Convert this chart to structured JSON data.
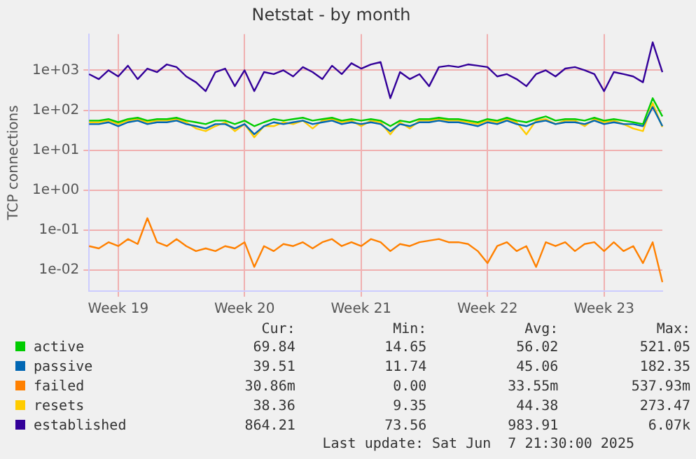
{
  "chart_data": {
    "type": "line",
    "title": "Netstat - by month",
    "ylabel": "TCP connections",
    "categories": [
      null,
      null,
      null,
      "Week 19",
      null,
      null,
      null,
      null,
      null,
      null,
      null,
      null,
      null,
      null,
      null,
      null,
      "Week 20",
      null,
      null,
      null,
      null,
      null,
      null,
      null,
      null,
      null,
      null,
      null,
      "Week 21",
      null,
      null,
      null,
      null,
      null,
      null,
      null,
      null,
      null,
      null,
      null,
      null,
      "Week 22",
      null,
      null,
      null,
      null,
      null,
      null,
      null,
      null,
      null,
      null,
      null,
      "Week 23",
      null,
      null,
      null,
      null,
      null,
      null
    ],
    "series": [
      {
        "name": "active",
        "color": "#00cc00",
        "values": [
          55,
          55,
          60,
          50,
          60,
          65,
          55,
          60,
          60,
          65,
          55,
          50,
          45,
          55,
          55,
          45,
          55,
          40,
          50,
          60,
          55,
          60,
          65,
          55,
          60,
          65,
          55,
          60,
          55,
          60,
          55,
          40,
          55,
          50,
          60,
          60,
          65,
          60,
          60,
          55,
          50,
          60,
          55,
          65,
          55,
          50,
          60,
          70,
          55,
          60,
          60,
          55,
          65,
          55,
          60,
          55,
          50,
          45,
          200,
          70
        ]
      },
      {
        "name": "passive",
        "color": "#0066b3",
        "values": [
          45,
          45,
          50,
          40,
          50,
          55,
          45,
          50,
          50,
          55,
          45,
          40,
          35,
          45,
          45,
          35,
          45,
          25,
          40,
          50,
          45,
          50,
          55,
          45,
          50,
          55,
          45,
          50,
          45,
          50,
          45,
          30,
          45,
          40,
          50,
          50,
          55,
          50,
          50,
          45,
          40,
          50,
          45,
          55,
          45,
          40,
          50,
          55,
          45,
          50,
          50,
          45,
          55,
          45,
          50,
          45,
          45,
          40,
          120,
          40
        ]
      },
      {
        "name": "failed",
        "color": "#ff8000",
        "values": [
          0.04,
          0.035,
          0.05,
          0.04,
          0.06,
          0.045,
          0.2,
          0.05,
          0.04,
          0.06,
          0.04,
          0.03,
          0.035,
          0.03,
          0.04,
          0.035,
          0.05,
          0.012,
          0.04,
          0.03,
          0.045,
          0.04,
          0.05,
          0.035,
          0.05,
          0.06,
          0.04,
          0.05,
          0.04,
          0.06,
          0.05,
          0.03,
          0.045,
          0.04,
          0.05,
          0.055,
          0.06,
          0.05,
          0.05,
          0.045,
          0.03,
          0.015,
          0.04,
          0.05,
          0.03,
          0.04,
          0.012,
          0.05,
          0.04,
          0.05,
          0.03,
          0.045,
          0.05,
          0.03,
          0.05,
          0.03,
          0.04,
          0.015,
          0.05,
          0.005
        ]
      },
      {
        "name": "resets",
        "color": "#ffcc00",
        "values": [
          50,
          50,
          55,
          45,
          55,
          60,
          50,
          55,
          55,
          60,
          50,
          35,
          30,
          40,
          50,
          30,
          45,
          21,
          40,
          40,
          50,
          45,
          55,
          35,
          55,
          60,
          50,
          55,
          40,
          55,
          50,
          25,
          50,
          35,
          55,
          55,
          60,
          55,
          55,
          50,
          45,
          55,
          50,
          60,
          50,
          25,
          55,
          60,
          45,
          55,
          55,
          40,
          60,
          50,
          55,
          45,
          35,
          30,
          150,
          38
        ]
      },
      {
        "name": "established",
        "color": "#330099",
        "values": [
          800,
          600,
          1000,
          700,
          1300,
          600,
          1100,
          900,
          1400,
          1200,
          700,
          500,
          300,
          900,
          1100,
          400,
          1000,
          300,
          900,
          800,
          1000,
          700,
          1200,
          900,
          600,
          1300,
          800,
          1500,
          1100,
          1400,
          1600,
          200,
          900,
          600,
          800,
          400,
          1200,
          1300,
          1200,
          1400,
          1300,
          1200,
          700,
          800,
          600,
          400,
          800,
          1000,
          700,
          1100,
          1200,
          1000,
          800,
          300,
          900,
          800,
          700,
          500,
          5000,
          900
        ]
      }
    ],
    "log": "y",
    "ylim": [
      0.003,
      8000
    ],
    "yticks": [
      {
        "value": 0.01,
        "label": "1e-02"
      },
      {
        "value": 0.1,
        "label": "1e-01"
      },
      {
        "value": 1,
        "label": "1e+00"
      },
      {
        "value": 10,
        "label": "1e+01"
      },
      {
        "value": 100,
        "label": "1e+02"
      },
      {
        "value": 1000,
        "label": "1e+03"
      }
    ],
    "grid": true,
    "legend": "bottom",
    "marker": "none",
    "line_style": "solid",
    "annotations": [
      "Cur:",
      "Min:",
      "Avg:",
      "Max:",
      "69.84",
      "14.65",
      "56.02",
      "521.05",
      "39.51",
      "11.74",
      "45.06",
      "182.35",
      "30.86m",
      "0.00",
      "33.55m",
      "537.93m",
      "38.36",
      "9.35",
      "44.38",
      "273.47",
      "864.21",
      "73.56",
      "983.91",
      "6.07k",
      "Last update: Sat Jun  7 21:30:00 2025"
    ]
  }
}
